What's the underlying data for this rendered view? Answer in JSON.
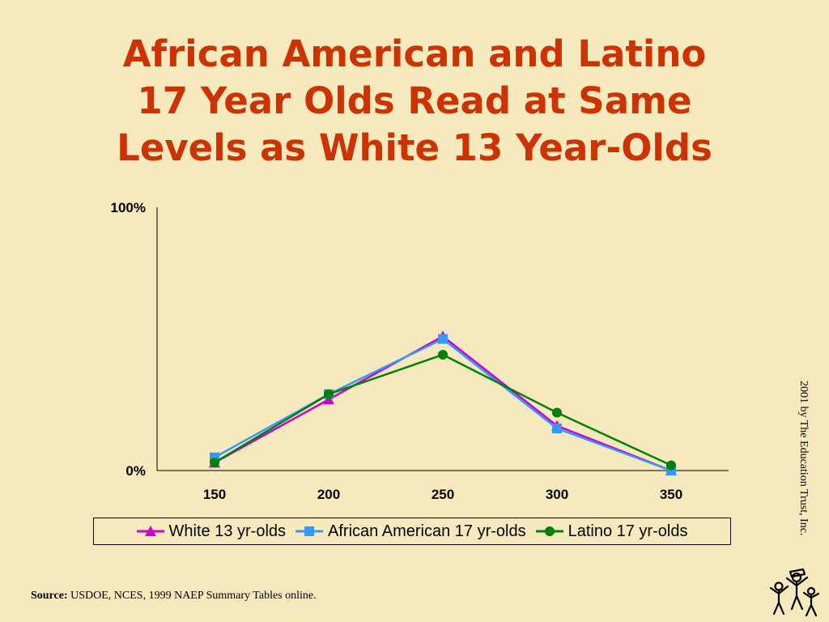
{
  "title": {
    "lines": [
      "African American and Latino",
      "17 Year Olds Read at Same",
      "Levels as White 13 Year-Olds"
    ]
  },
  "chart_data": {
    "type": "line",
    "x": [
      150,
      200,
      250,
      300,
      350
    ],
    "ylim": [
      0,
      100
    ],
    "y_tick_labels": [
      "100%",
      "0%"
    ],
    "x_tick_labels": [
      "150",
      "200",
      "250",
      "300",
      "350"
    ],
    "legend_position": "bottom",
    "grid": false,
    "series": [
      {
        "name": "White 13 yr-olds",
        "values": [
          3,
          27,
          51,
          17,
          0
        ],
        "color": "#cc00cc",
        "marker": "triangle"
      },
      {
        "name": "African American 17 yr-olds",
        "values": [
          5,
          29,
          50,
          16,
          0
        ],
        "color": "#3399ff",
        "marker": "square"
      },
      {
        "name": "Latino 17 yr-olds",
        "values": [
          3,
          29,
          44,
          22,
          2
        ],
        "color": "#008000",
        "marker": "circle"
      }
    ]
  },
  "source": {
    "label": "Source:",
    "text": "USDOE, NCES, 1999 NAEP Summary Tables online."
  },
  "copyright": "2001 by The Education Trust, Inc.",
  "logo_icon": "education-trust-logo-icon"
}
